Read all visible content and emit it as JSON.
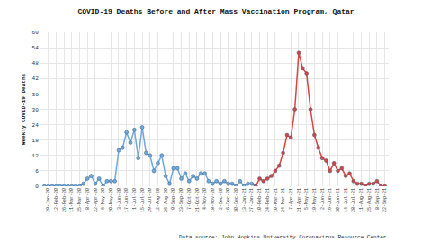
{
  "chart_data": {
    "type": "line",
    "title": "COVID-19 Deaths Before and After Mass Vaccination Program, Qatar",
    "y_label": "Weekly COVID-19 Deaths",
    "annotations": [
      "Data source: John Hopkins University Coronavirus Resource Center"
    ],
    "categories": [
      null,
      "29-Jan-20",
      null,
      "12-Feb-20",
      null,
      "26-Feb-20",
      null,
      "11-Mar-20",
      null,
      "25-Mar-20",
      null,
      "8-Apr-20",
      null,
      "22-Apr-20",
      null,
      "6-May-20",
      null,
      "20-May-20",
      null,
      "3-Jun-20",
      null,
      "17-Jun-20",
      null,
      "1-Jul-20",
      null,
      "15-Jul-20",
      null,
      "29-Jul-20",
      null,
      "12-Aug-20",
      null,
      "26-Aug-20",
      null,
      "9-Sep-20",
      null,
      "23-Sep-20",
      null,
      "7-Oct-20",
      null,
      "21-Oct-20",
      null,
      "4-Nov-20",
      null,
      "18-Nov-20",
      null,
      "2-Dec-20",
      null,
      "16-Dec-20",
      null,
      "30-Dec-20",
      null,
      "13-Jan-21",
      null,
      "27-Jan-21",
      null,
      "10-Feb-21",
      null,
      "24-Feb-21",
      null,
      "10-Mar-21",
      null,
      "24-Mar-21",
      null,
      "7-Apr-21",
      null,
      "21-Apr-21",
      null,
      "5-May-21",
      null,
      "19-May-21",
      null,
      "2-Jun-21",
      null,
      "16-Jun-21",
      null,
      "30-Jun-21",
      null,
      "14-Jul-21",
      null,
      "28-Jul-21",
      null,
      "11-Aug-21",
      null,
      "25-Aug-21",
      null,
      "8-Sep-21",
      null,
      "22-Sep-21"
    ],
    "series": [
      {
        "color": "#6fa8dc",
        "marker": "circle",
        "values": [
          0,
          0,
          0,
          0,
          0,
          0,
          0,
          0,
          0,
          0,
          1,
          3,
          4,
          1,
          3,
          0,
          2,
          2,
          2,
          14,
          15,
          21,
          17,
          22,
          11,
          23,
          13,
          12,
          6,
          9,
          12,
          4,
          1,
          7,
          7,
          3,
          5,
          2,
          4,
          3,
          5,
          5,
          2,
          1,
          2,
          1,
          2,
          1,
          1,
          0,
          2,
          0,
          1,
          1,
          0,
          null,
          null,
          null,
          null,
          null,
          null,
          null,
          null,
          null,
          null,
          null,
          null,
          null,
          null,
          null,
          null,
          null,
          null,
          null,
          null,
          null,
          null,
          null,
          null,
          null,
          null,
          null,
          null,
          null,
          null,
          null,
          null,
          null
        ]
      },
      {
        "color": "#d9443f",
        "marker": "circle",
        "values": [
          null,
          null,
          null,
          null,
          null,
          null,
          null,
          null,
          null,
          null,
          null,
          null,
          null,
          null,
          null,
          null,
          null,
          null,
          null,
          null,
          null,
          null,
          null,
          null,
          null,
          null,
          null,
          null,
          null,
          null,
          null,
          null,
          null,
          null,
          null,
          null,
          null,
          null,
          null,
          null,
          null,
          null,
          null,
          null,
          null,
          null,
          null,
          null,
          null,
          null,
          null,
          null,
          null,
          null,
          0,
          3,
          2,
          3,
          4,
          6,
          8,
          13,
          20,
          19,
          30,
          52,
          46,
          44,
          30,
          20,
          15,
          11,
          10,
          6,
          9,
          6,
          7,
          4,
          5,
          2,
          1,
          1,
          0,
          1,
          1,
          2,
          0,
          0
        ]
      }
    ],
    "ylim": [
      0,
      60
    ],
    "yticks": [
      0,
      6,
      12,
      18,
      24,
      30,
      36,
      42,
      48,
      54,
      60
    ],
    "grid": true
  }
}
